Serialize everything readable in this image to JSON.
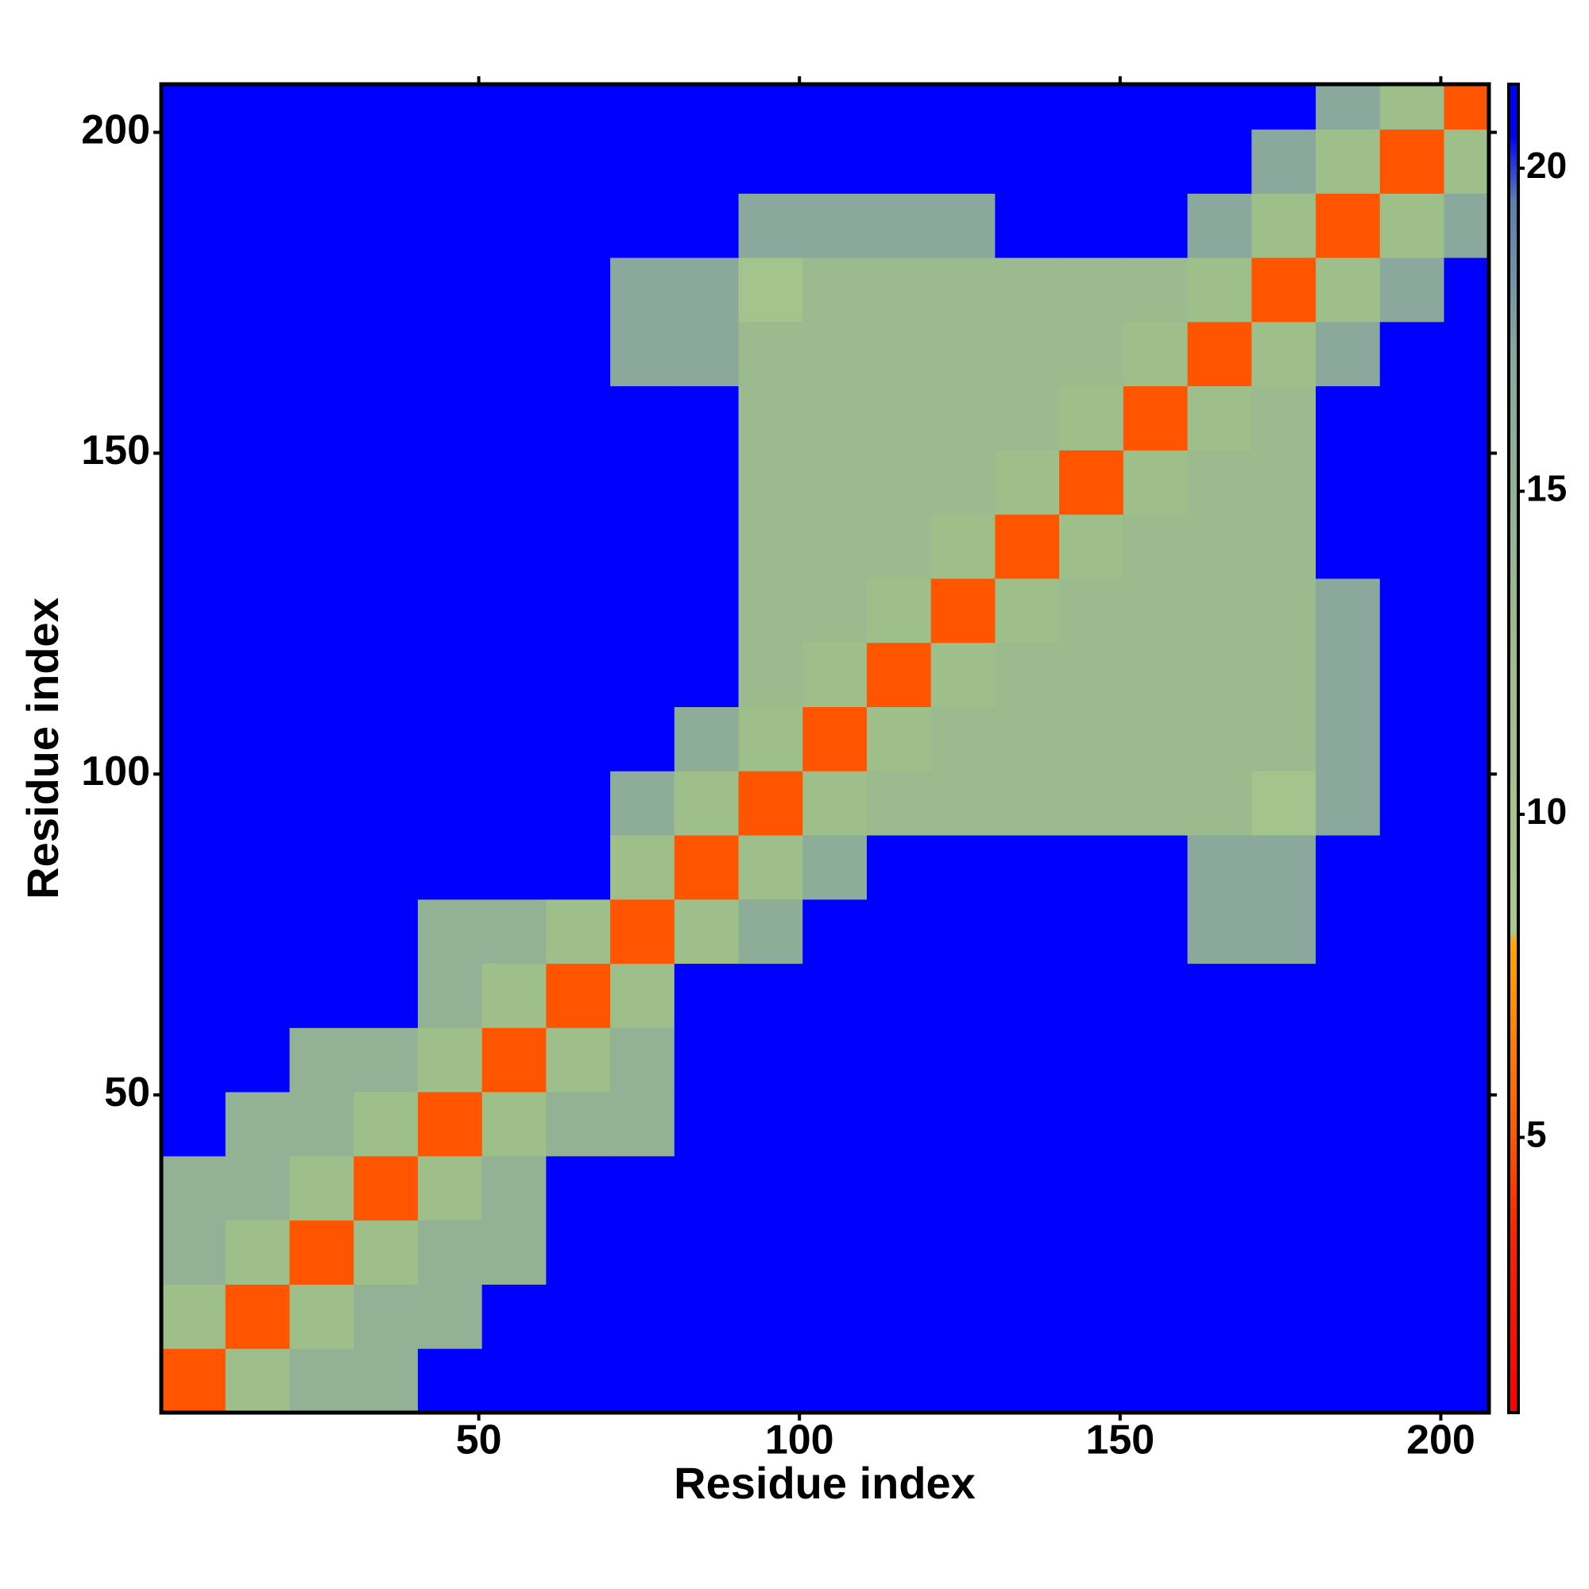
{
  "chart_data": {
    "type": "heatmap",
    "x_label": "Residue index",
    "y_label": "Residue index",
    "xlim": [
      0.5,
      207.5
    ],
    "ylim": [
      0.5,
      207.5
    ],
    "xticks": [
      50,
      100,
      150,
      200
    ],
    "yticks": [
      50,
      100,
      150,
      200
    ],
    "x_edges": [
      0.5,
      10.5,
      20.5,
      30.5,
      40.5,
      50.5,
      60.5,
      70.5,
      80.5,
      90.5,
      100.5,
      110.5,
      120.5,
      130.5,
      140.5,
      150.5,
      160.5,
      170.5,
      180.5,
      190.5,
      200.5,
      207.5
    ],
    "y_edges": [
      0.5,
      10.5,
      20.5,
      30.5,
      40.5,
      50.5,
      60.5,
      70.5,
      80.5,
      90.5,
      100.5,
      110.5,
      120.5,
      130.5,
      140.5,
      150.5,
      160.5,
      170.5,
      180.5,
      190.5,
      200.5,
      207.5
    ],
    "values": [
      [
        5,
        12,
        15,
        15,
        21,
        21,
        21,
        21,
        21,
        21,
        21,
        21,
        21,
        21,
        21,
        21,
        21,
        21,
        21,
        21,
        21
      ],
      [
        12,
        5,
        12,
        15,
        15,
        21,
        21,
        21,
        21,
        21,
        21,
        21,
        21,
        21,
        21,
        21,
        21,
        21,
        21,
        21,
        21
      ],
      [
        15,
        12,
        5,
        12,
        15,
        15,
        21,
        21,
        21,
        21,
        21,
        21,
        21,
        21,
        21,
        21,
        21,
        21,
        21,
        21,
        21
      ],
      [
        15,
        15,
        12,
        5,
        12,
        15,
        21,
        21,
        21,
        21,
        21,
        21,
        21,
        21,
        21,
        21,
        21,
        21,
        21,
        21,
        21
      ],
      [
        21,
        15,
        15,
        12,
        5,
        12,
        15,
        15,
        21,
        21,
        21,
        21,
        21,
        21,
        21,
        21,
        21,
        21,
        21,
        21,
        21
      ],
      [
        21,
        21,
        15,
        15,
        12,
        5,
        12,
        15,
        21,
        21,
        21,
        21,
        21,
        21,
        21,
        21,
        21,
        21,
        21,
        21,
        21
      ],
      [
        21,
        21,
        21,
        21,
        15,
        12,
        5,
        12,
        21,
        21,
        21,
        21,
        21,
        21,
        21,
        21,
        21,
        21,
        21,
        21,
        21
      ],
      [
        21,
        21,
        21,
        21,
        15,
        15,
        12,
        5,
        12,
        16,
        21,
        21,
        21,
        21,
        21,
        21,
        17,
        17,
        21,
        21,
        21
      ],
      [
        21,
        21,
        21,
        21,
        21,
        21,
        21,
        12,
        5,
        12,
        16,
        21,
        21,
        21,
        21,
        21,
        17,
        17,
        21,
        21,
        21
      ],
      [
        21,
        21,
        21,
        21,
        21,
        21,
        21,
        16,
        12,
        5,
        12,
        13,
        13,
        13,
        13,
        13,
        13,
        10,
        17,
        21,
        21
      ],
      [
        21,
        21,
        21,
        21,
        21,
        21,
        21,
        21,
        16,
        12,
        5,
        12,
        13,
        13,
        13,
        13,
        13,
        13,
        17,
        21,
        21
      ],
      [
        21,
        21,
        21,
        21,
        21,
        21,
        21,
        21,
        21,
        13,
        12,
        5,
        12,
        13,
        13,
        13,
        13,
        13,
        17,
        21,
        21
      ],
      [
        21,
        21,
        21,
        21,
        21,
        21,
        21,
        21,
        21,
        13,
        13,
        12,
        5,
        12,
        13,
        13,
        13,
        13,
        17,
        21,
        21
      ],
      [
        21,
        21,
        21,
        21,
        21,
        21,
        21,
        21,
        21,
        13,
        13,
        13,
        12,
        5,
        12,
        13,
        13,
        13,
        21,
        21,
        21
      ],
      [
        21,
        21,
        21,
        21,
        21,
        21,
        21,
        21,
        21,
        13,
        13,
        13,
        13,
        12,
        5,
        12,
        13,
        13,
        21,
        21,
        21
      ],
      [
        21,
        21,
        21,
        21,
        21,
        21,
        21,
        21,
        21,
        13,
        13,
        13,
        13,
        13,
        12,
        5,
        12,
        13,
        21,
        21,
        21
      ],
      [
        21,
        21,
        21,
        21,
        21,
        21,
        21,
        17,
        17,
        13,
        13,
        13,
        13,
        13,
        13,
        12,
        5,
        12,
        17,
        21,
        21
      ],
      [
        21,
        21,
        21,
        21,
        21,
        21,
        21,
        17,
        17,
        10,
        13,
        13,
        13,
        13,
        13,
        13,
        12,
        5,
        12,
        17,
        21
      ],
      [
        21,
        21,
        21,
        21,
        21,
        21,
        21,
        21,
        21,
        17,
        17,
        17,
        17,
        21,
        21,
        21,
        17,
        12,
        5,
        12,
        17
      ],
      [
        21,
        21,
        21,
        21,
        21,
        21,
        21,
        21,
        21,
        21,
        21,
        21,
        21,
        21,
        21,
        21,
        21,
        17,
        12,
        5,
        12
      ],
      [
        21,
        21,
        21,
        21,
        21,
        21,
        21,
        21,
        21,
        21,
        21,
        21,
        21,
        21,
        21,
        21,
        21,
        21,
        17,
        12,
        5
      ]
    ],
    "colorbar": {
      "lim": [
        0.74,
        21.3
      ],
      "ticks": [
        5,
        10,
        15,
        20
      ],
      "stops": [
        [
          0.74,
          "#ff0000"
        ],
        [
          3.5,
          "#ff2200"
        ],
        [
          5.5,
          "#ff6600"
        ],
        [
          8,
          "#ffa500"
        ],
        [
          8.2,
          "#a9c98f"
        ],
        [
          12,
          "#9fbf8a"
        ],
        [
          17,
          "#8aa89c"
        ],
        [
          19.5,
          "#5a7fb0"
        ],
        [
          20.5,
          "#0000ff"
        ],
        [
          21.3,
          "#0000ff"
        ]
      ]
    }
  }
}
